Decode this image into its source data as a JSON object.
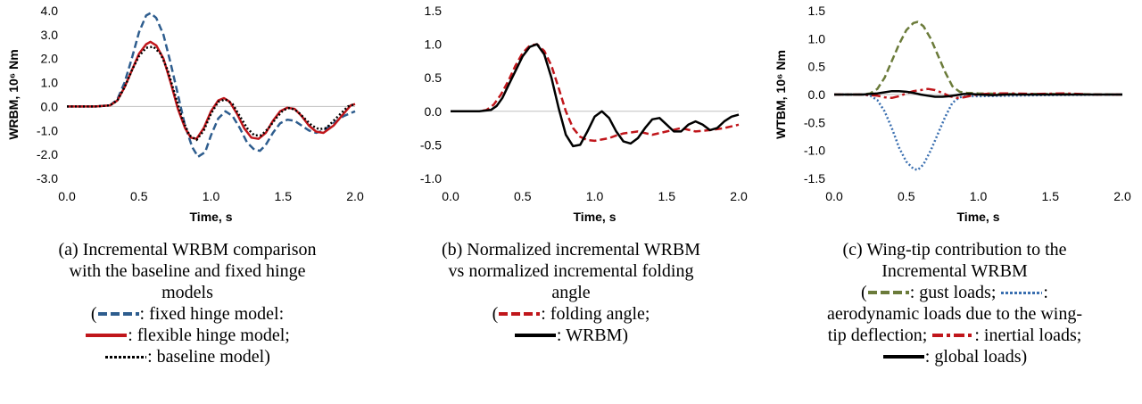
{
  "chart_data": [
    {
      "type": "line",
      "xlabel": "Time, s",
      "ylabel": "WRBM, 10⁶ Nm",
      "xlim": [
        0,
        2
      ],
      "ylim": [
        -3,
        4
      ],
      "xticks": [
        "0.0",
        "0.5",
        "1.0",
        "1.5",
        "2.0"
      ],
      "yticks": [
        "4.0",
        "3.0",
        "2.0",
        "1.0",
        "0.0",
        "-1.0",
        "-2.0",
        "-3.0"
      ],
      "series": [
        {
          "color": "#2e5d8e",
          "style": "dashed",
          "x": [
            0.0,
            0.2,
            0.3,
            0.35,
            0.4,
            0.45,
            0.5,
            0.55,
            0.58,
            0.62,
            0.67,
            0.72,
            0.77,
            0.82,
            0.87,
            0.91,
            0.96,
            1.0,
            1.05,
            1.1,
            1.15,
            1.2,
            1.25,
            1.3,
            1.34,
            1.38,
            1.43,
            1.48,
            1.53,
            1.58,
            1.63,
            1.68,
            1.73,
            1.78,
            1.85,
            1.92,
            2.0
          ],
          "y": [
            0.0,
            0.0,
            0.05,
            0.3,
            1.0,
            2.0,
            3.1,
            3.8,
            3.9,
            3.7,
            3.0,
            1.8,
            0.5,
            -0.8,
            -1.7,
            -2.1,
            -1.9,
            -1.2,
            -0.5,
            -0.2,
            -0.4,
            -0.9,
            -1.5,
            -1.8,
            -1.85,
            -1.6,
            -1.1,
            -0.7,
            -0.55,
            -0.6,
            -0.8,
            -1.0,
            -1.1,
            -1.0,
            -0.7,
            -0.4,
            -0.2
          ]
        },
        {
          "color": "#c0161b",
          "style": "solid",
          "x": [
            0.0,
            0.2,
            0.3,
            0.35,
            0.4,
            0.45,
            0.5,
            0.55,
            0.58,
            0.62,
            0.67,
            0.72,
            0.77,
            0.82,
            0.86,
            0.9,
            0.95,
            1.0,
            1.05,
            1.09,
            1.13,
            1.18,
            1.23,
            1.28,
            1.33,
            1.38,
            1.43,
            1.48,
            1.53,
            1.58,
            1.63,
            1.68,
            1.73,
            1.78,
            1.85,
            1.92,
            1.97,
            2.0
          ],
          "y": [
            0.0,
            0.0,
            0.05,
            0.25,
            0.8,
            1.5,
            2.2,
            2.6,
            2.7,
            2.55,
            2.0,
            1.0,
            -0.1,
            -0.9,
            -1.3,
            -1.35,
            -0.9,
            -0.2,
            0.25,
            0.35,
            0.2,
            -0.3,
            -0.9,
            -1.3,
            -1.35,
            -1.1,
            -0.6,
            -0.2,
            -0.05,
            -0.1,
            -0.4,
            -0.8,
            -1.05,
            -1.1,
            -0.8,
            -0.3,
            0.05,
            0.1
          ]
        },
        {
          "color": "#000000",
          "style": "dotted",
          "x": [
            0.0,
            0.2,
            0.3,
            0.35,
            0.4,
            0.45,
            0.5,
            0.55,
            0.6,
            0.65,
            0.7,
            0.75,
            0.8,
            0.85,
            0.9,
            0.95,
            1.0,
            1.05,
            1.1,
            1.15,
            1.2,
            1.25,
            1.3,
            1.35,
            1.4,
            1.45,
            1.5,
            1.55,
            1.6,
            1.65,
            1.7,
            1.75,
            1.8,
            1.85,
            1.9,
            1.95,
            2.0
          ],
          "y": [
            0.0,
            0.0,
            0.05,
            0.25,
            0.8,
            1.5,
            2.1,
            2.45,
            2.5,
            2.2,
            1.5,
            0.5,
            -0.5,
            -1.2,
            -1.4,
            -1.0,
            -0.3,
            0.2,
            0.3,
            0.1,
            -0.4,
            -0.9,
            -1.2,
            -1.2,
            -0.9,
            -0.5,
            -0.15,
            -0.05,
            -0.2,
            -0.5,
            -0.8,
            -0.95,
            -0.9,
            -0.6,
            -0.3,
            0.0,
            0.1
          ]
        }
      ]
    },
    {
      "type": "line",
      "xlabel": "Time, s",
      "ylabel": "",
      "xlim": [
        0,
        2
      ],
      "ylim": [
        -1,
        1.5
      ],
      "xticks": [
        "0.0",
        "0.5",
        "1.0",
        "1.5",
        "2.0"
      ],
      "yticks": [
        "1.5",
        "1.0",
        "0.5",
        "0.0",
        "-0.5",
        "-1.0"
      ],
      "series": [
        {
          "color": "#c0161b",
          "style": "dashed",
          "x": [
            0.0,
            0.2,
            0.25,
            0.3,
            0.35,
            0.4,
            0.45,
            0.5,
            0.55,
            0.6,
            0.65,
            0.7,
            0.75,
            0.8,
            0.85,
            0.9,
            0.95,
            1.0,
            1.05,
            1.1,
            1.15,
            1.2,
            1.3,
            1.4,
            1.5,
            1.6,
            1.7,
            1.8,
            1.9,
            2.0
          ],
          "y": [
            0.0,
            0.0,
            0.02,
            0.1,
            0.25,
            0.45,
            0.68,
            0.87,
            0.98,
            1.0,
            0.9,
            0.68,
            0.35,
            0.0,
            -0.25,
            -0.38,
            -0.43,
            -0.44,
            -0.42,
            -0.4,
            -0.36,
            -0.33,
            -0.3,
            -0.35,
            -0.3,
            -0.25,
            -0.3,
            -0.28,
            -0.25,
            -0.2
          ]
        },
        {
          "color": "#000000",
          "style": "solid",
          "x": [
            0.0,
            0.2,
            0.28,
            0.32,
            0.36,
            0.4,
            0.45,
            0.5,
            0.55,
            0.6,
            0.65,
            0.7,
            0.75,
            0.8,
            0.85,
            0.9,
            0.95,
            1.0,
            1.05,
            1.1,
            1.15,
            1.2,
            1.25,
            1.3,
            1.35,
            1.4,
            1.45,
            1.5,
            1.55,
            1.6,
            1.65,
            1.7,
            1.75,
            1.8,
            1.85,
            1.9,
            1.95,
            2.0
          ],
          "y": [
            0.0,
            0.0,
            0.02,
            0.08,
            0.2,
            0.38,
            0.6,
            0.82,
            0.96,
            1.0,
            0.85,
            0.5,
            0.05,
            -0.35,
            -0.52,
            -0.5,
            -0.3,
            -0.08,
            0.0,
            -0.1,
            -0.3,
            -0.45,
            -0.48,
            -0.4,
            -0.25,
            -0.12,
            -0.1,
            -0.2,
            -0.3,
            -0.3,
            -0.2,
            -0.15,
            -0.2,
            -0.28,
            -0.25,
            -0.15,
            -0.08,
            -0.05
          ]
        }
      ]
    },
    {
      "type": "line",
      "xlabel": "Time, s",
      "ylabel": "WTBM, 10⁶ Nm",
      "xlim": [
        0,
        2
      ],
      "ylim": [
        -1.5,
        1.5
      ],
      "xticks": [
        "0.0",
        "0.5",
        "1.0",
        "1.5",
        "2.0"
      ],
      "yticks": [
        "1.5",
        "1.0",
        "0.5",
        "0.0",
        "-0.5",
        "-1.0",
        "-1.5"
      ],
      "series": [
        {
          "color": "#6b7b3a",
          "style": "dashed",
          "x": [
            0.0,
            0.2,
            0.25,
            0.3,
            0.35,
            0.4,
            0.45,
            0.5,
            0.55,
            0.58,
            0.62,
            0.67,
            0.72,
            0.77,
            0.82,
            0.87,
            0.92,
            1.0,
            1.2,
            1.5,
            2.0
          ],
          "y": [
            0.0,
            0.0,
            0.02,
            0.1,
            0.3,
            0.6,
            0.9,
            1.15,
            1.28,
            1.3,
            1.22,
            1.0,
            0.7,
            0.4,
            0.15,
            0.05,
            0.03,
            0.02,
            0.01,
            0.01,
            0.0
          ]
        },
        {
          "color": "#3a6fb0",
          "style": "dotted",
          "x": [
            0.0,
            0.2,
            0.25,
            0.3,
            0.35,
            0.4,
            0.45,
            0.5,
            0.55,
            0.58,
            0.62,
            0.67,
            0.72,
            0.77,
            0.82,
            0.87,
            0.92,
            1.0,
            1.2,
            1.5,
            2.0
          ],
          "y": [
            0.0,
            0.0,
            -0.02,
            -0.1,
            -0.3,
            -0.6,
            -0.95,
            -1.2,
            -1.33,
            -1.35,
            -1.25,
            -1.0,
            -0.7,
            -0.4,
            -0.15,
            -0.05,
            -0.03,
            -0.03,
            -0.02,
            -0.01,
            0.0
          ]
        },
        {
          "color": "#c0161b",
          "style": "dashdot",
          "x": [
            0.0,
            0.2,
            0.3,
            0.35,
            0.4,
            0.45,
            0.5,
            0.55,
            0.6,
            0.65,
            0.7,
            0.75,
            0.8,
            0.85,
            0.9,
            0.95,
            1.0,
            1.1,
            1.2,
            1.4,
            1.6,
            1.8,
            2.0
          ],
          "y": [
            0.0,
            0.0,
            -0.02,
            -0.05,
            -0.06,
            -0.03,
            0.02,
            0.06,
            0.08,
            0.1,
            0.08,
            0.03,
            -0.03,
            -0.06,
            -0.05,
            -0.02,
            0.0,
            0.02,
            0.02,
            0.01,
            0.02,
            0.0,
            0.0
          ]
        },
        {
          "color": "#000000",
          "style": "solid",
          "x": [
            0.0,
            0.2,
            0.3,
            0.35,
            0.4,
            0.45,
            0.5,
            0.55,
            0.6,
            0.65,
            0.7,
            0.75,
            0.8,
            0.85,
            0.9,
            0.95,
            1.0,
            1.1,
            1.2,
            1.4,
            1.6,
            1.8,
            2.0
          ],
          "y": [
            0.0,
            0.0,
            0.02,
            0.04,
            0.06,
            0.06,
            0.05,
            0.03,
            0.0,
            -0.02,
            -0.04,
            -0.04,
            -0.03,
            -0.01,
            0.01,
            0.01,
            0.0,
            -0.01,
            0.0,
            0.0,
            0.0,
            0.0,
            0.0
          ]
        }
      ]
    }
  ],
  "captions": [
    {
      "title_lines": [
        "(a) Incremental WRBM comparison",
        "with the baseline and fixed hinge",
        "models"
      ],
      "legend": {
        "open": "(",
        "fixed": ": fixed hinge model:",
        "flexible": ": flexible hinge model;",
        "baseline": ": baseline model)"
      }
    },
    {
      "title_lines": [
        "(b) Normalized incremental WRBM",
        "vs normalized incremental folding",
        "angle"
      ],
      "legend": {
        "open": "(",
        "folding": ": folding angle;",
        "wrbm": ": WRBM)"
      }
    },
    {
      "title_lines": [
        "(c) Wing-tip contribution to the",
        "Incremental WRBM"
      ],
      "legend": {
        "open": "(",
        "gust": ": gust loads; ",
        "aero1": ":",
        "aero2": "aerodynamic loads due to the wing-",
        "aero3": "tip deflection; ",
        "inertial": ": inertial loads;",
        "global": ": global loads)"
      }
    }
  ]
}
